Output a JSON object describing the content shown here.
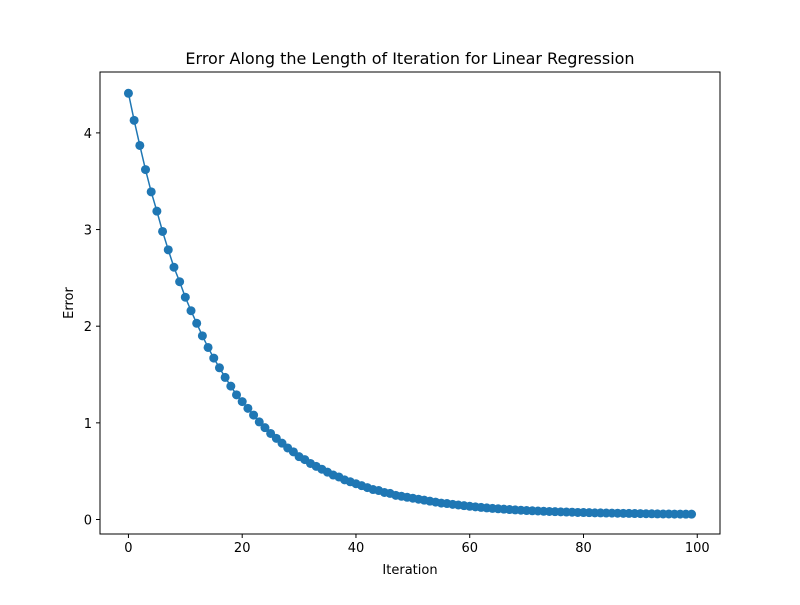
{
  "chart_data": {
    "type": "line",
    "title": "Error Along the Length of Iteration for Linear Regression",
    "xlabel": "Iteration",
    "ylabel": "Error",
    "xlim": [
      -5,
      104
    ],
    "ylim": [
      -0.15,
      4.63
    ],
    "xticks": [
      0,
      20,
      40,
      60,
      80,
      100
    ],
    "yticks": [
      0,
      1,
      2,
      3,
      4
    ],
    "grid": false,
    "legend": null,
    "marker": "circle",
    "series": [
      {
        "color": "#1f77b4",
        "x": [
          0,
          1,
          2,
          3,
          4,
          5,
          6,
          7,
          8,
          9,
          10,
          11,
          12,
          13,
          14,
          15,
          16,
          17,
          18,
          19,
          20,
          21,
          22,
          23,
          24,
          25,
          26,
          27,
          28,
          29,
          30,
          31,
          32,
          33,
          34,
          35,
          36,
          37,
          38,
          39,
          40,
          41,
          42,
          43,
          44,
          45,
          46,
          47,
          48,
          49,
          50,
          51,
          52,
          53,
          54,
          55,
          56,
          57,
          58,
          59,
          60,
          61,
          62,
          63,
          64,
          65,
          66,
          67,
          68,
          69,
          70,
          71,
          72,
          73,
          74,
          75,
          76,
          77,
          78,
          79,
          80,
          81,
          82,
          83,
          84,
          85,
          86,
          87,
          88,
          89,
          90,
          91,
          92,
          93,
          94,
          95,
          96,
          97,
          98,
          99
        ],
        "y": [
          4.41,
          4.13,
          3.87,
          3.62,
          3.39,
          3.19,
          2.98,
          2.79,
          2.61,
          2.46,
          2.3,
          2.16,
          2.03,
          1.9,
          1.78,
          1.67,
          1.57,
          1.47,
          1.38,
          1.29,
          1.22,
          1.15,
          1.08,
          1.01,
          0.95,
          0.89,
          0.84,
          0.79,
          0.74,
          0.7,
          0.65,
          0.62,
          0.58,
          0.55,
          0.52,
          0.49,
          0.46,
          0.44,
          0.41,
          0.39,
          0.37,
          0.35,
          0.33,
          0.31,
          0.3,
          0.28,
          0.27,
          0.25,
          0.24,
          0.23,
          0.22,
          0.21,
          0.2,
          0.19,
          0.18,
          0.17,
          0.165,
          0.157,
          0.15,
          0.143,
          0.137,
          0.131,
          0.125,
          0.12,
          0.115,
          0.111,
          0.107,
          0.103,
          0.099,
          0.096,
          0.093,
          0.09,
          0.088,
          0.085,
          0.083,
          0.081,
          0.079,
          0.077,
          0.075,
          0.073,
          0.072,
          0.071,
          0.069,
          0.068,
          0.067,
          0.066,
          0.065,
          0.064,
          0.063,
          0.062,
          0.061,
          0.06,
          0.059,
          0.058,
          0.057,
          0.057,
          0.056,
          0.056,
          0.055,
          0.055
        ]
      }
    ]
  }
}
